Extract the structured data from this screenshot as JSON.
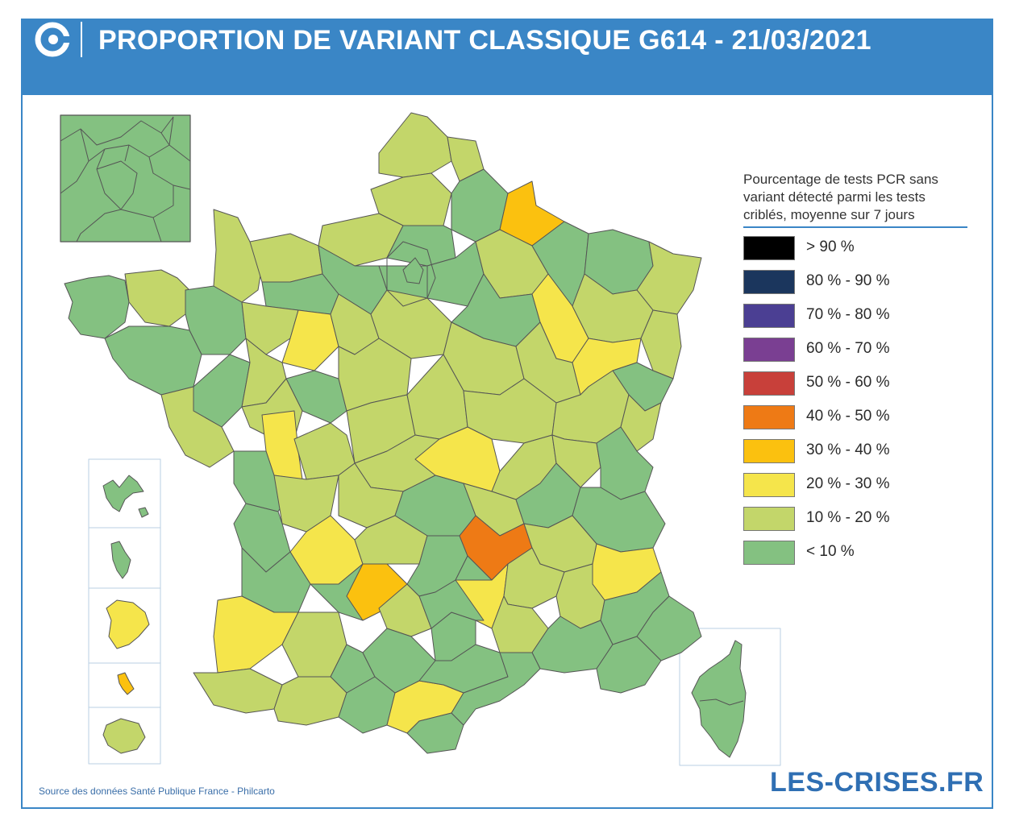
{
  "header": {
    "title": "PROPORTION DE VARIANT CLASSIQUE G614 - 21/03/2021",
    "logo_icon": "les-crises-logo-icon"
  },
  "legend": {
    "title": "Pourcentage de tests PCR sans\nvariant détecté parmi les tests\ncriblés, moyenne sur 7 jours",
    "items": [
      {
        "label": "> 90 %",
        "color": "#000000"
      },
      {
        "label": "80 % - 90 %",
        "color": "#1b365d"
      },
      {
        "label": "70 % - 80 %",
        "color": "#4b3f93"
      },
      {
        "label": "60 % - 70 %",
        "color": "#7a3f92"
      },
      {
        "label": "50 % - 60 %",
        "color": "#c8403a"
      },
      {
        "label": "40 % - 50 %",
        "color": "#ee7a15"
      },
      {
        "label": "30 % - 40 %",
        "color": "#fbc10f"
      },
      {
        "label": "20 % - 30 %",
        "color": "#f5e54b"
      },
      {
        "label": "10 % - 20 %",
        "color": "#c3d66a"
      },
      {
        "label": "< 10 %",
        "color": "#84c181"
      }
    ]
  },
  "footer": {
    "source": "Source des données Santé Publique France - Philcarto",
    "brand": "LES-CRISES.FR"
  }
}
